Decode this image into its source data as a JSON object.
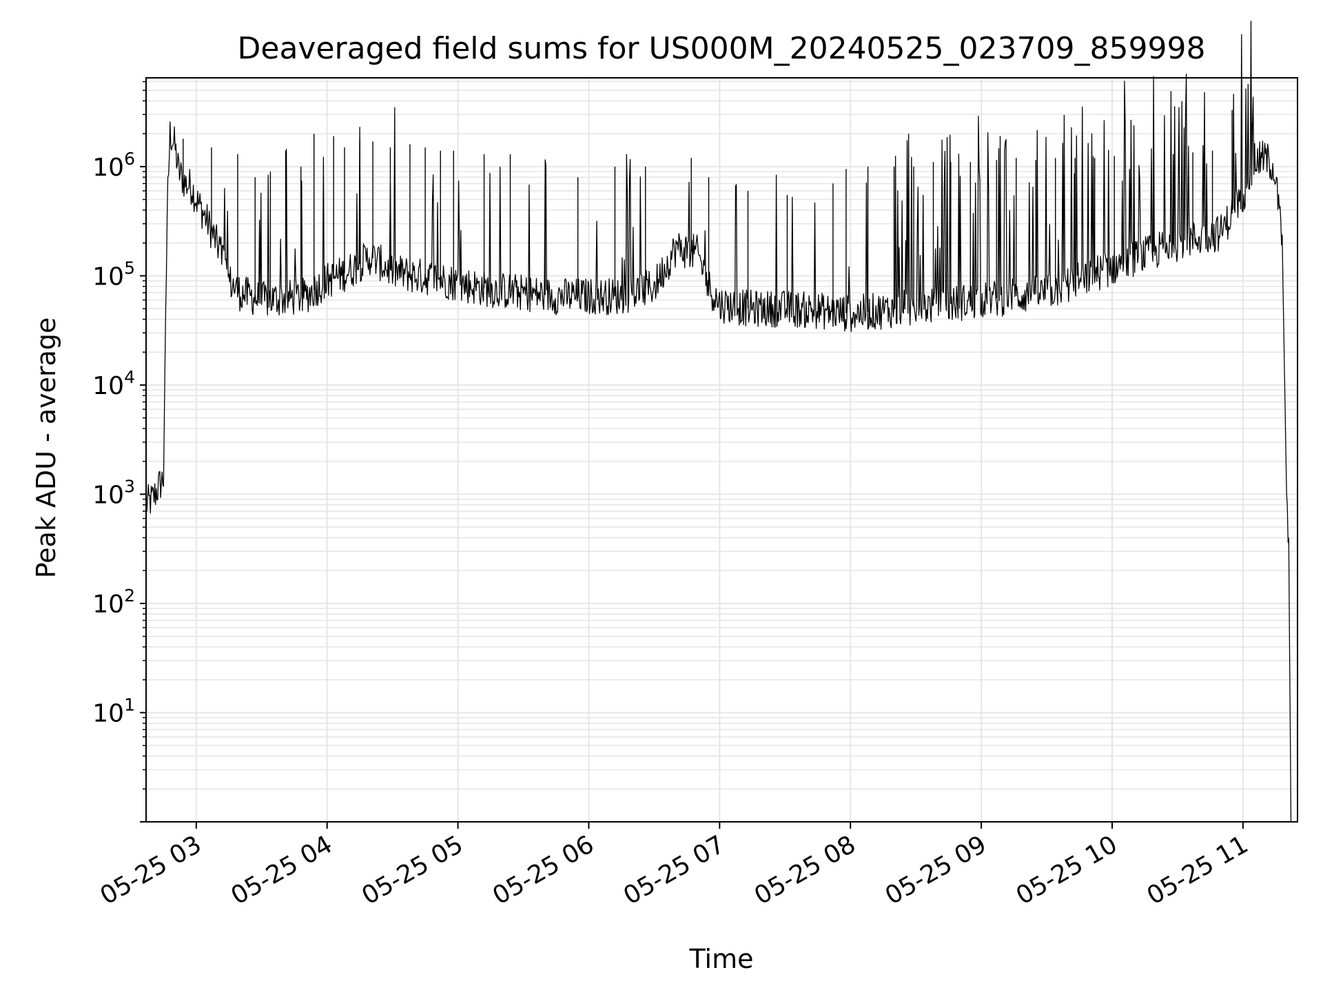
{
  "chart_data": {
    "type": "line",
    "title": "Deaveraged field sums for US000M_20240525_023709_859998",
    "xlabel": "Time",
    "ylabel": "Peak ADU - average",
    "x_tick_labels": [
      "05-25 03",
      "05-25 04",
      "05-25 05",
      "05-25 06",
      "05-25 07",
      "05-25 08",
      "05-25 09",
      "05-25 10",
      "05-25 11"
    ],
    "y_tick_labels": [
      {
        "base": "10",
        "exp": "1",
        "value": 10
      },
      {
        "base": "10",
        "exp": "2",
        "value": 100
      },
      {
        "base": "10",
        "exp": "3",
        "value": 1000
      },
      {
        "base": "10",
        "exp": "4",
        "value": 10000
      },
      {
        "base": "10",
        "exp": "5",
        "value": 100000
      },
      {
        "base": "10",
        "exp": "6",
        "value": 1000000
      }
    ],
    "x_range": [
      "2024-05-25 02:37",
      "2024-05-25 11:25"
    ],
    "y_scale": "log",
    "y_range": [
      1.0,
      6500000
    ],
    "grid": true,
    "line_color": "#000000",
    "grid_color": "#e6e6e6",
    "series": [
      {
        "x": [
          "2024-05-25 02:37",
          "2024-05-25 02:40",
          "2024-05-25 02:43",
          "2024-05-25 02:45",
          "2024-05-25 02:46",
          "2024-05-25 02:47",
          "2024-05-25 02:48",
          "2024-05-25 02:50",
          "2024-05-25 02:52",
          "2024-05-25 02:55",
          "2024-05-25 02:58",
          "2024-05-25 03:00",
          "2024-05-25 03:04",
          "2024-05-25 03:08",
          "2024-05-25 03:12",
          "2024-05-25 03:15",
          "2024-05-25 03:20",
          "2024-05-25 03:30",
          "2024-05-25 03:40",
          "2024-05-25 03:50",
          "2024-05-25 04:00",
          "2024-05-25 04:10",
          "2024-05-25 04:20",
          "2024-05-25 04:30",
          "2024-05-25 04:40",
          "2024-05-25 04:50",
          "2024-05-25 05:00",
          "2024-05-25 05:15",
          "2024-05-25 05:30",
          "2024-05-25 05:45",
          "2024-05-25 06:00",
          "2024-05-25 06:15",
          "2024-05-25 06:30",
          "2024-05-25 06:40",
          "2024-05-25 06:50",
          "2024-05-25 06:55",
          "2024-05-25 07:00",
          "2024-05-25 07:15",
          "2024-05-25 07:30",
          "2024-05-25 07:45",
          "2024-05-25 08:00",
          "2024-05-25 08:15",
          "2024-05-25 08:30",
          "2024-05-25 08:45",
          "2024-05-25 09:00",
          "2024-05-25 09:30",
          "2024-05-25 10:00",
          "2024-05-25 10:30",
          "2024-05-25 10:50",
          "2024-05-25 11:00",
          "2024-05-25 11:05",
          "2024-05-25 11:10",
          "2024-05-25 11:14",
          "2024-05-25 11:16",
          "2024-05-25 11:18",
          "2024-05-25 11:20",
          "2024-05-25 11:21",
          "2024-05-25 11:22"
        ],
        "values": [
          800,
          900,
          1200,
          1400,
          50000,
          600000,
          2000000,
          1600000,
          900000,
          700000,
          650000,
          500000,
          350000,
          230000,
          150000,
          90000,
          70000,
          60000,
          62000,
          65000,
          90000,
          110000,
          150000,
          110000,
          100000,
          95000,
          85000,
          75000,
          70000,
          65000,
          65000,
          65000,
          80000,
          180000,
          160000,
          80000,
          55000,
          50000,
          50000,
          48000,
          45000,
          48000,
          52000,
          55000,
          60000,
          70000,
          120000,
          200000,
          250000,
          550000,
          1100000,
          1200000,
          1000000,
          500000,
          200000,
          1000,
          300,
          1.0
        ]
      }
    ],
    "spikes": {
      "x": [
        "2024-05-25 02:54",
        "2024-05-25 03:07",
        "2024-05-25 03:19",
        "2024-05-25 03:27",
        "2024-05-25 03:34",
        "2024-05-25 03:41",
        "2024-05-25 03:48",
        "2024-05-25 03:54",
        "2024-05-25 04:03",
        "2024-05-25 04:08",
        "2024-05-25 04:15",
        "2024-05-25 04:21",
        "2024-05-25 04:29",
        "2024-05-25 04:38",
        "2024-05-25 04:45",
        "2024-05-25 04:52",
        "2024-05-25 04:58",
        "2024-05-25 05:12",
        "2024-05-25 05:24",
        "2024-05-25 05:40",
        "2024-05-25 05:55",
        "2024-05-25 06:12",
        "2024-05-25 06:26",
        "2024-05-25 06:47",
        "2024-05-25 06:55",
        "2024-05-25 07:13",
        "2024-05-25 07:31",
        "2024-05-25 07:52",
        "2024-05-25 07:58",
        "2024-05-25 08:08",
        "2024-05-25 08:20",
        "2024-05-25 08:29",
        "2024-05-25 08:38",
        "2024-05-25 08:46",
        "2024-05-25 08:55",
        "2024-05-25 09:07",
        "2024-05-25 09:16",
        "2024-05-25 09:25",
        "2024-05-25 09:34",
        "2024-05-25 09:43",
        "2024-05-25 09:52",
        "2024-05-25 10:01",
        "2024-05-25 10:10",
        "2024-05-25 10:19",
        "2024-05-25 10:28",
        "2024-05-25 10:37",
        "2024-05-25 10:46",
        "2024-05-25 10:55",
        "2024-05-25 11:04"
      ],
      "values": [
        1800000,
        1500000,
        1300000,
        800000,
        900000,
        1400000,
        1000000,
        2000000,
        1900000,
        1500000,
        1800000,
        1700000,
        1500000,
        1600000,
        1500000,
        1400000,
        1400000,
        1300000,
        1300000,
        700000,
        800000,
        1000000,
        1000000,
        1200000,
        800000,
        600000,
        550000,
        700000,
        950000,
        1000000,
        1000000,
        1000000,
        1100000,
        1100000,
        1100000,
        1150000,
        1200000,
        1150000,
        1200000,
        1200000,
        1200000,
        1250000,
        1250000,
        1300000,
        1300000,
        1350000,
        1400000,
        3300000,
        2500000
      ]
    }
  }
}
